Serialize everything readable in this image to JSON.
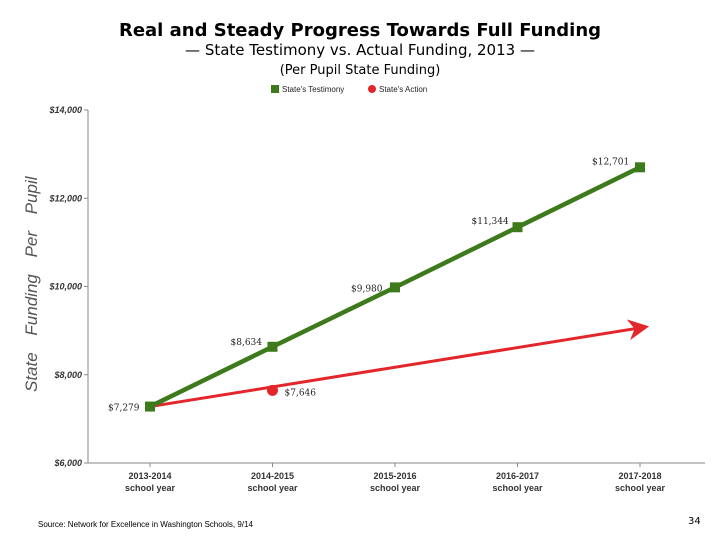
{
  "header": {
    "title": "Real and Steady Progress Towards Full Funding",
    "subtitle": "— State Testimony vs. Actual Funding, 2013 —",
    "note": "(Per Pupil State Funding)"
  },
  "footer": {
    "source": "Source: Network for Excellence in Washington Schools, 9/14",
    "page_number": "34"
  },
  "chart_data": {
    "type": "line",
    "title": "Real and Steady Progress Towards Full Funding",
    "ylabel": "State Funding Per Pupil",
    "xlabel": "",
    "categories": [
      [
        "2013-2014",
        "school year"
      ],
      [
        "2014-2015",
        "school year"
      ],
      [
        "2015-2016",
        "school year"
      ],
      [
        "2016-2017",
        "school year"
      ],
      [
        "2017-2018",
        "school year"
      ]
    ],
    "ylim": [
      6000,
      14000
    ],
    "yticks": [
      6000,
      8000,
      10000,
      12000,
      14000
    ],
    "ytick_labels": [
      "$6,000",
      "$8,000",
      "$10,000",
      "$12,000",
      "$14,000"
    ],
    "grid": false,
    "legend_position": "top",
    "series": [
      {
        "name": "State's Testimony",
        "color": "#3d7a1c",
        "marker": "square",
        "values": [
          7279,
          8634,
          9980,
          11344,
          12701
        ],
        "labels": [
          "$7,279",
          "$8,634",
          "$9,980",
          "$11,344",
          "$12,701"
        ]
      },
      {
        "name": "State's Action",
        "color": "#e3262b",
        "marker": "circle",
        "trend": {
          "start_index": 0,
          "start_value": 7279,
          "end_index": 4,
          "end_value": 9080
        },
        "points": [
          {
            "index": 1,
            "value": 7646,
            "label": "$7,646"
          }
        ]
      }
    ]
  }
}
